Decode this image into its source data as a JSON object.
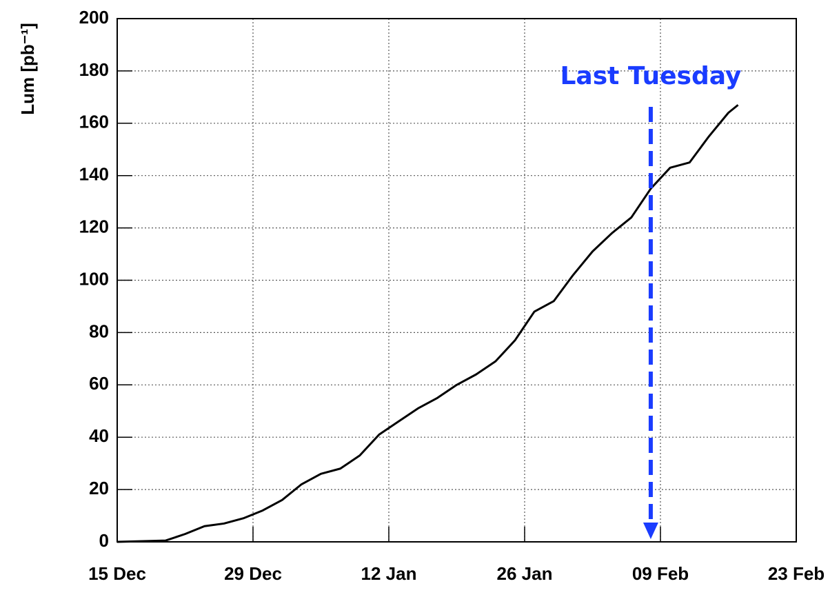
{
  "chart_data": {
    "type": "line",
    "ylabel": "Lum [pb⁻¹]",
    "x": [
      "15 Dec",
      "20 Dec",
      "22 Dec",
      "24 Dec",
      "26 Dec",
      "28 Dec",
      "30 Dec",
      "01 Jan",
      "03 Jan",
      "05 Jan",
      "07 Jan",
      "09 Jan",
      "11 Jan",
      "13 Jan",
      "15 Jan",
      "17 Jan",
      "19 Jan",
      "21 Jan",
      "23 Jan",
      "25 Jan",
      "27 Jan",
      "29 Jan",
      "31 Jan",
      "02 Feb",
      "04 Feb",
      "06 Feb",
      "08 Feb",
      "10 Feb",
      "12 Feb",
      "14 Feb",
      "16 Feb",
      "17 Feb"
    ],
    "series": [
      {
        "color": "#000000",
        "values": [
          0,
          0.5,
          3,
          6,
          7,
          9,
          12,
          16,
          22,
          26,
          28,
          33,
          41,
          46,
          51,
          55,
          60,
          64,
          69,
          77,
          88,
          92,
          102,
          111,
          118,
          124,
          135,
          143,
          145,
          155,
          164,
          167
        ]
      }
    ],
    "xlim": [
      "15 Dec",
      "23 Feb"
    ],
    "xticks": [
      "15 Dec",
      "29 Dec",
      "12 Jan",
      "26 Jan",
      "09 Feb",
      "23 Feb"
    ],
    "ylim": [
      0,
      200
    ],
    "yticks": [
      0,
      20,
      40,
      60,
      80,
      100,
      120,
      140,
      160,
      180,
      200
    ],
    "grid": true,
    "annotations": [
      {
        "text": "Last Tuesday",
        "x": "08 Feb",
        "color": "#1a3cff"
      }
    ]
  }
}
